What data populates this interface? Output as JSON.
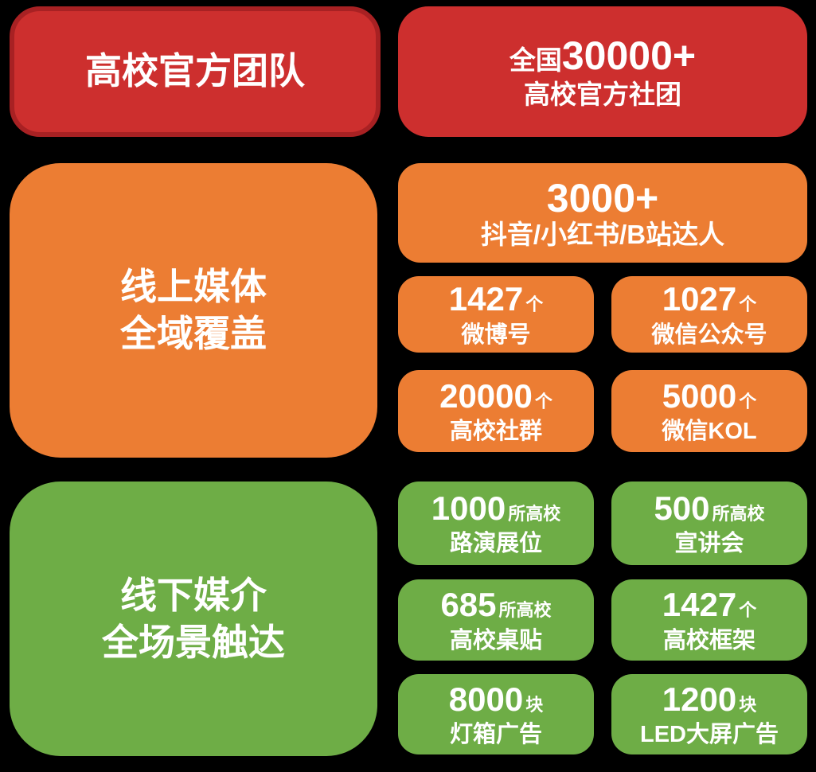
{
  "colors": {
    "background": "#000000",
    "red": "#cd2f2e",
    "red_border": "#a82123",
    "orange": "#ec7d33",
    "green": "#6ead46",
    "text": "#ffffff"
  },
  "team": {
    "title": "高校官方团队",
    "stat": {
      "prefix": "全国",
      "number": "30000+",
      "label": "高校官方社团"
    }
  },
  "online": {
    "title_line1": "线上媒体",
    "title_line2": "全域覆盖",
    "featured": {
      "number": "3000+",
      "label": "抖音/小红书/B站达人"
    },
    "stats": [
      {
        "number": "1427",
        "unit": "个",
        "label": "微博号"
      },
      {
        "number": "1027",
        "unit": "个",
        "label": "微信公众号"
      },
      {
        "number": "20000",
        "unit": "个",
        "label": "高校社群"
      },
      {
        "number": "5000",
        "unit": "个",
        "label": "微信KOL"
      }
    ]
  },
  "offline": {
    "title_line1": "线下媒介",
    "title_line2": "全场景触达",
    "stats": [
      {
        "number": "1000",
        "unit": "所高校",
        "label": "路演展位"
      },
      {
        "number": "500",
        "unit": "所高校",
        "label": "宣讲会"
      },
      {
        "number": "685",
        "unit": "所高校",
        "label": "高校桌贴"
      },
      {
        "number": "1427",
        "unit": "个",
        "label": "高校框架"
      },
      {
        "number": "8000",
        "unit": "块",
        "label": "灯箱广告"
      },
      {
        "number": "1200",
        "unit": "块",
        "label": "LED大屏广告"
      }
    ]
  }
}
